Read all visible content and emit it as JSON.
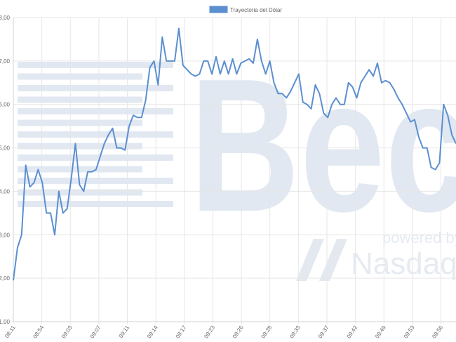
{
  "watermark": {
    "big": "Bec",
    "powered": "powered by",
    "brand": "Nasdaq"
  },
  "chart_data": {
    "type": "line",
    "series": [
      {
        "name": "Trayectoria del Dólar",
        "color": "#5b8fd0",
        "values": [
          1.95,
          2.7,
          3.0,
          4.6,
          4.1,
          4.2,
          4.5,
          4.2,
          3.5,
          3.5,
          3.0,
          4.0,
          3.5,
          3.6,
          4.3,
          5.1,
          4.15,
          4.0,
          4.45,
          4.45,
          4.5,
          4.8,
          5.1,
          5.3,
          5.45,
          5.0,
          5.0,
          4.95,
          5.5,
          5.75,
          5.7,
          5.7,
          6.1,
          6.85,
          7.0,
          6.45,
          7.55,
          7.0,
          7.0,
          7.0,
          7.75,
          6.9,
          6.8,
          6.7,
          6.65,
          6.7,
          7.0,
          7.0,
          6.7,
          7.1,
          6.7,
          7.0,
          6.7,
          7.05,
          6.7,
          6.95,
          7.0,
          7.05,
          6.95,
          7.5,
          7.0,
          6.7,
          7.0,
          6.5,
          6.25,
          6.25,
          6.15,
          6.3,
          6.5,
          6.7,
          6.05,
          6.0,
          5.9,
          6.45,
          6.25,
          5.8,
          5.7,
          6.0,
          6.15,
          6.0,
          6.0,
          6.5,
          6.4,
          6.15,
          6.5,
          6.65,
          6.8,
          6.65,
          6.95,
          6.5,
          6.55,
          6.5,
          6.35,
          6.15,
          6.0,
          5.8,
          5.6,
          5.65,
          5.25,
          5.0,
          5.0,
          4.55,
          4.5,
          4.65,
          6.0,
          5.75,
          5.3,
          5.1
        ]
      }
    ],
    "x_tick_labels": [
      "08:11",
      "08:54",
      "09:03",
      "09:07",
      "09:11",
      "09:14",
      "09:17",
      "09:23",
      "09:26",
      "09:28",
      "09:33",
      "09:37",
      "09:42",
      "09:49",
      "09:53",
      "09:56"
    ],
    "y_tick_labels": [
      "1,00",
      "2,00",
      "3,00",
      "4,00",
      "5,00",
      "6,00",
      "7,00",
      "8,00"
    ],
    "ylim": [
      1,
      8
    ],
    "grid": true,
    "legend_position": "top-center"
  }
}
